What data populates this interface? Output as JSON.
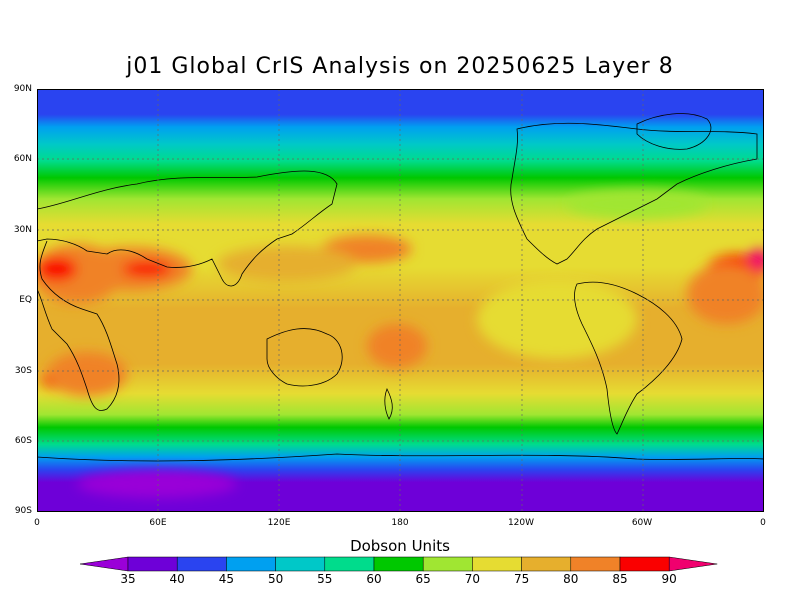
{
  "title": "j01 Global CrIS Analysis on 20250625 Layer 8",
  "colorbar": {
    "label": "Dobson Units",
    "ticks": [
      "35",
      "40",
      "45",
      "50",
      "55",
      "60",
      "65",
      "70",
      "75",
      "80",
      "85",
      "90"
    ],
    "colors": [
      "#9a00d8",
      "#6e00d8",
      "#2a44f0",
      "#00a0f0",
      "#00c8c8",
      "#00dc8c",
      "#00c800",
      "#a0e632",
      "#e6dc32",
      "#e6af2d",
      "#f08228",
      "#fa0000",
      "#f0006e"
    ]
  },
  "map": {
    "lat_labels": [
      "90N",
      "60N",
      "30N",
      "EQ",
      "30S",
      "60S",
      "90S"
    ],
    "lon_labels": [
      "0",
      "60E",
      "120E",
      "180",
      "120W",
      "60W",
      "0"
    ]
  }
}
